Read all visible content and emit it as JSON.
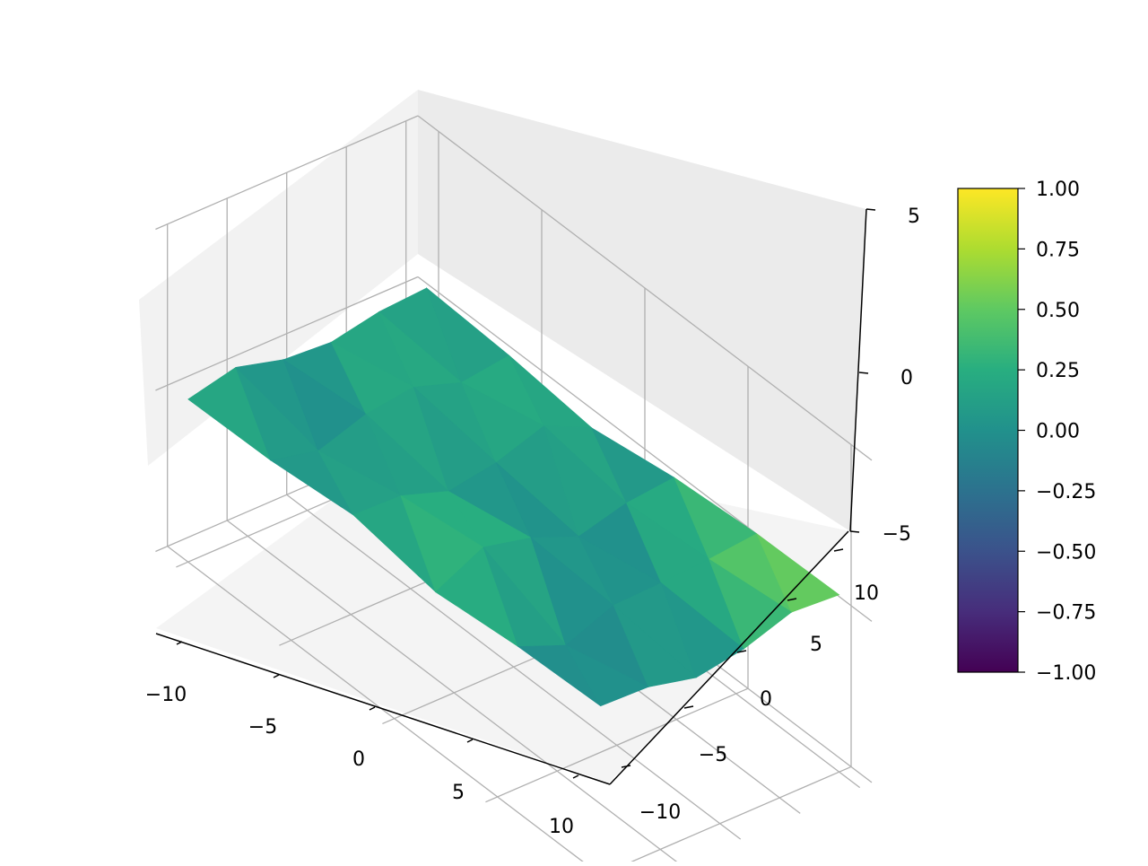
{
  "chart_data": {
    "type": "surface3d",
    "colormap": "viridis",
    "x_ticks": [
      "−10",
      "−5",
      "0",
      "5",
      "10"
    ],
    "y_ticks": [
      "−10",
      "−5",
      "0",
      "5",
      "10"
    ],
    "z_ticks": [
      "−5",
      "0",
      "5"
    ],
    "xlim": [
      -11,
      11
    ],
    "ylim": [
      -11,
      11
    ],
    "zlim": [
      -5,
      5
    ],
    "grid": true,
    "grid_x": [
      -10,
      -6,
      -2,
      2,
      6,
      10
    ],
    "grid_y": [
      -10,
      -6,
      -2,
      2,
      6,
      10
    ],
    "z": [
      [
        0.05,
        0.1,
        0.35,
        -0.1,
        0.15,
        0.25
      ],
      [
        0.4,
        -0.25,
        0.3,
        0.65,
        -0.45,
        0.2
      ],
      [
        0.0,
        0.25,
        -0.2,
        0.3,
        0.15,
        -0.15
      ],
      [
        -0.1,
        0.45,
        0.05,
        -0.3,
        0.2,
        0.1
      ],
      [
        0.2,
        -0.05,
        0.55,
        0.1,
        0.3,
        0.6
      ],
      [
        0.3,
        0.15,
        -0.15,
        0.25,
        0.45,
        0.5
      ]
    ],
    "colorbar": {
      "range": [
        -1.0,
        1.0
      ],
      "ticks": [
        "1.00",
        "0.75",
        "0.50",
        "0.25",
        "0.00",
        "−0.25",
        "−0.50",
        "−0.75",
        "−1.00"
      ]
    }
  }
}
